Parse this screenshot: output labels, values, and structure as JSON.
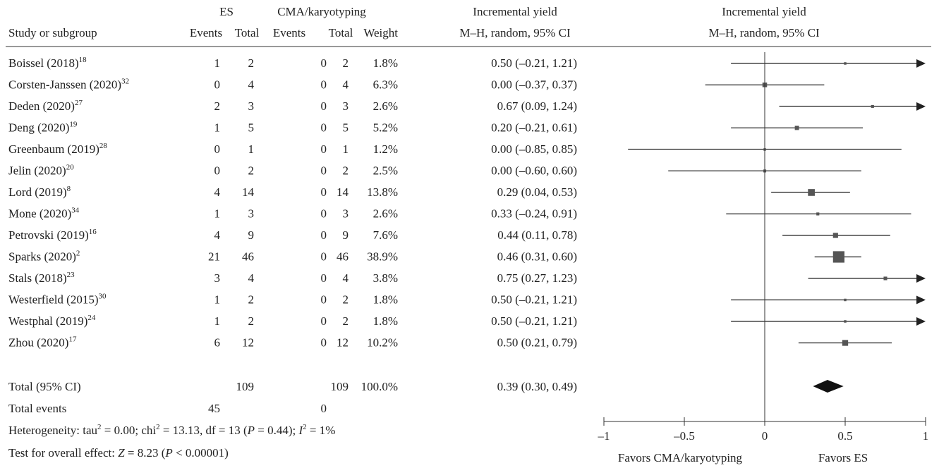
{
  "chart_data": {
    "type": "forest",
    "headers": {
      "es_group": "ES",
      "cma_group": "CMA/karyotyping",
      "table_effect_top": "Incremental yield",
      "table_effect_bottom": "M–H, random, 95% CI",
      "plot_effect_top": "Incremental yield",
      "plot_effect_bottom": "M–H, random, 95% CI",
      "study": "Study or subgroup",
      "es_events": "Events",
      "es_total": "Total",
      "cma_events": "Events",
      "cma_total": "Total",
      "weight": "Weight"
    },
    "studies": [
      {
        "name": "Boissel (2018)",
        "ref": "18",
        "es_events": "1",
        "es_total": "2",
        "cma_events": "0",
        "cma_total": "2",
        "weight": "1.8%",
        "ci_text": "0.50 (–0.21, 1.21)",
        "est": 0.5,
        "lo": -0.21,
        "hi": 1.21,
        "w": 1.8
      },
      {
        "name": "Corsten-Janssen (2020)",
        "ref": "32",
        "es_events": "0",
        "es_total": "4",
        "cma_events": "0",
        "cma_total": "4",
        "weight": "6.3%",
        "ci_text": "0.00 (–0.37, 0.37)",
        "est": 0.0,
        "lo": -0.37,
        "hi": 0.37,
        "w": 6.3
      },
      {
        "name": "Deden (2020)",
        "ref": "27",
        "es_events": "2",
        "es_total": "3",
        "cma_events": "0",
        "cma_total": "3",
        "weight": "2.6%",
        "ci_text": "0.67 (0.09, 1.24)",
        "est": 0.67,
        "lo": 0.09,
        "hi": 1.24,
        "w": 2.6
      },
      {
        "name": "Deng (2020)",
        "ref": "19",
        "es_events": "1",
        "es_total": "5",
        "cma_events": "0",
        "cma_total": "5",
        "weight": "5.2%",
        "ci_text": "0.20 (–0.21, 0.61)",
        "est": 0.2,
        "lo": -0.21,
        "hi": 0.61,
        "w": 5.2
      },
      {
        "name": "Greenbaum (2019)",
        "ref": "28",
        "es_events": "0",
        "es_total": "1",
        "cma_events": "0",
        "cma_total": "1",
        "weight": "1.2%",
        "ci_text": "0.00 (–0.85, 0.85)",
        "est": 0.0,
        "lo": -0.85,
        "hi": 0.85,
        "w": 1.2
      },
      {
        "name": "Jelin (2020)",
        "ref": "20",
        "es_events": "0",
        "es_total": "2",
        "cma_events": "0",
        "cma_total": "2",
        "weight": "2.5%",
        "ci_text": "0.00 (–0.60, 0.60)",
        "est": 0.0,
        "lo": -0.6,
        "hi": 0.6,
        "w": 2.5
      },
      {
        "name": "Lord (2019)",
        "ref": "8",
        "es_events": "4",
        "es_total": "14",
        "cma_events": "0",
        "cma_total": "14",
        "weight": "13.8%",
        "ci_text": "0.29 (0.04, 0.53)",
        "est": 0.29,
        "lo": 0.04,
        "hi": 0.53,
        "w": 13.8
      },
      {
        "name": "Mone (2020)",
        "ref": "34",
        "es_events": "1",
        "es_total": "3",
        "cma_events": "0",
        "cma_total": "3",
        "weight": "2.6%",
        "ci_text": "0.33 (–0.24, 0.91)",
        "est": 0.33,
        "lo": -0.24,
        "hi": 0.91,
        "w": 2.6
      },
      {
        "name": "Petrovski (2019)",
        "ref": "16",
        "es_events": "4",
        "es_total": "9",
        "cma_events": "0",
        "cma_total": "9",
        "weight": "7.6%",
        "ci_text": "0.44 (0.11, 0.78)",
        "est": 0.44,
        "lo": 0.11,
        "hi": 0.78,
        "w": 7.6
      },
      {
        "name": "Sparks (2020)",
        "ref": "2",
        "es_events": "21",
        "es_total": "46",
        "cma_events": "0",
        "cma_total": "46",
        "weight": "38.9%",
        "ci_text": "0.46 (0.31, 0.60)",
        "est": 0.46,
        "lo": 0.31,
        "hi": 0.6,
        "w": 38.9
      },
      {
        "name": "Stals (2018)",
        "ref": "23",
        "es_events": "3",
        "es_total": "4",
        "cma_events": "0",
        "cma_total": "4",
        "weight": "3.8%",
        "ci_text": "0.75 (0.27, 1.23)",
        "est": 0.75,
        "lo": 0.27,
        "hi": 1.23,
        "w": 3.8
      },
      {
        "name": "Westerfield (2015)",
        "ref": "30",
        "es_events": "1",
        "es_total": "2",
        "cma_events": "0",
        "cma_total": "2",
        "weight": "1.8%",
        "ci_text": "0.50 (–0.21, 1.21)",
        "est": 0.5,
        "lo": -0.21,
        "hi": 1.21,
        "w": 1.8
      },
      {
        "name": "Westphal (2019)",
        "ref": "24",
        "es_events": "1",
        "es_total": "2",
        "cma_events": "0",
        "cma_total": "2",
        "weight": "1.8%",
        "ci_text": "0.50 (–0.21, 1.21)",
        "est": 0.5,
        "lo": -0.21,
        "hi": 1.21,
        "w": 1.8
      },
      {
        "name": "Zhou (2020)",
        "ref": "17",
        "es_events": "6",
        "es_total": "12",
        "cma_events": "0",
        "cma_total": "12",
        "weight": "10.2%",
        "ci_text": "0.50 (0.21, 0.79)",
        "est": 0.5,
        "lo": 0.21,
        "hi": 0.79,
        "w": 10.2
      }
    ],
    "total": {
      "label": "Total (95% CI)",
      "es_total": "109",
      "cma_total": "109",
      "weight": "100.0%",
      "ci_text": "0.39 (0.30, 0.49)",
      "est": 0.39,
      "lo": 0.3,
      "hi": 0.49
    },
    "total_events": {
      "label": "Total events",
      "es_events": "45",
      "cma_events": "0"
    },
    "heterogeneity": {
      "prefix": "Heterogeneity: tau",
      "sup1": "2",
      "tau_value": " = 0.00; chi",
      "sup2": "2",
      "chi_value": " = 13.13, df = 13 (",
      "p_symbol": "P",
      "p_value": " = 0.44); ",
      "i_symbol": "I",
      "sup3": "2",
      "i_value": " = 1%"
    },
    "overall_effect": {
      "prefix": "Test for overall effect: ",
      "z_symbol": "Z",
      "z_value": " = 8.23 (",
      "p_symbol": "P",
      "p_value": " < 0.00001)"
    },
    "x_axis": {
      "xlim": [
        -1,
        1
      ],
      "ticks": [
        -1,
        -0.5,
        0,
        0.5,
        1
      ],
      "tick_labels": [
        "–1",
        "–0.5",
        "0",
        "0.5",
        "1"
      ],
      "left_label": "Favors CMA/karyotyping",
      "right_label": "Favors ES"
    },
    "colors": {
      "line": "#222222",
      "marker": "#555555",
      "diamond": "#111111"
    }
  }
}
